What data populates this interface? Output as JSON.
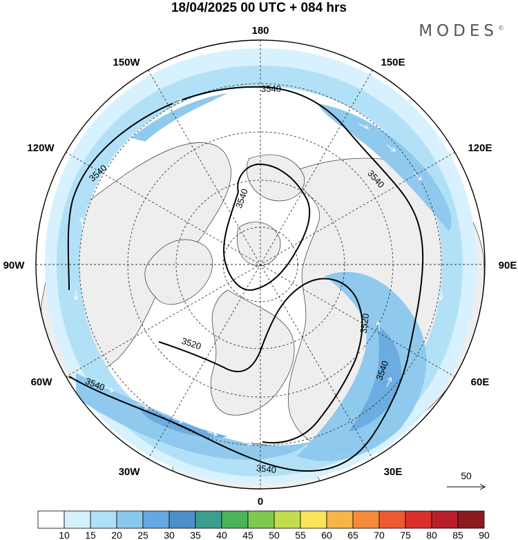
{
  "title": "18/04/2025  00 UTC  + 084 hrs",
  "brand": "MODES",
  "brand_mark": "©",
  "lon_labels": [
    "180",
    "150E",
    "120E",
    "90E",
    "60E",
    "30E",
    "0",
    "30W",
    "60W",
    "90W",
    "120W",
    "150W"
  ],
  "contours": [
    {
      "label": "3540"
    },
    {
      "label": "3540"
    },
    {
      "label": "3540"
    },
    {
      "label": "3540"
    },
    {
      "label": "3540"
    },
    {
      "label": "3540"
    },
    {
      "label": "3520"
    },
    {
      "label": "3520"
    },
    {
      "label": "3540"
    }
  ],
  "vector_scale": "50",
  "colorbar": {
    "ticks": [
      "10",
      "15",
      "20",
      "25",
      "30",
      "35",
      "40",
      "45",
      "50",
      "55",
      "60",
      "65",
      "70",
      "75",
      "80",
      "85",
      "90"
    ],
    "colors": [
      "#ffffff",
      "#d6f1fe",
      "#aee0f7",
      "#8ac8ee",
      "#64a8e0",
      "#4a8fc8",
      "#3a9f8e",
      "#4cb35a",
      "#7ec84c",
      "#c2dc4e",
      "#fbe45a",
      "#f8b447",
      "#f58a3a",
      "#ed5a32",
      "#d9302c",
      "#b81f2a",
      "#8c1a1f"
    ]
  }
}
